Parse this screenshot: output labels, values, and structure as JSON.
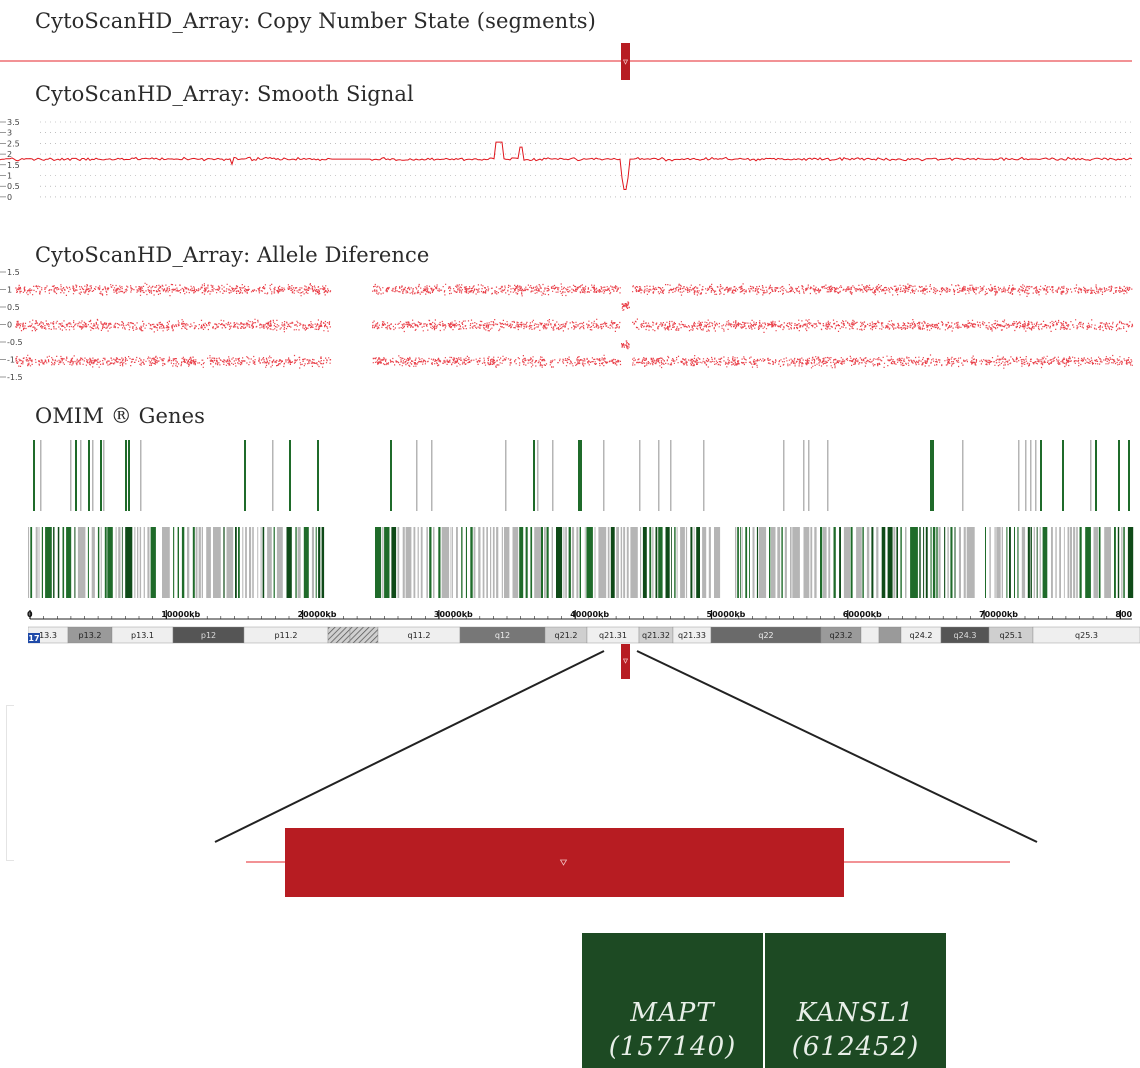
{
  "tracks": {
    "copy_number": {
      "title": "CytoScanHD_Array: Copy Number State (segments)"
    },
    "smooth_signal": {
      "title": "CytoScanHD_Array: Smooth Signal",
      "y_ticks": [
        "3.5",
        "3",
        "2.5",
        "2",
        "1.5",
        "1",
        "0.5",
        "0"
      ]
    },
    "allele_difference": {
      "title": "CytoScanHD_Array: Allele Diference",
      "y_ticks": [
        "1.5",
        "1",
        "0.5",
        "0",
        "-0.5",
        "-1",
        "-1.5"
      ]
    },
    "omim": {
      "title": "OMIM ® Genes"
    }
  },
  "axis": {
    "labels": [
      "0",
      "10000kb",
      "20000kb",
      "30000kb",
      "40000kb",
      "50000kb",
      "60000kb",
      "70000kb",
      "800"
    ]
  },
  "ideogram": {
    "chromosome": "17",
    "bands": [
      "13.3",
      "p13.2",
      "p13.1",
      "p12",
      "p11.2",
      "q11.2",
      "q12",
      "q21.2",
      "q21.31",
      "q21.32",
      "q21.33",
      "q22",
      "q23.2",
      "q24.2",
      "q24.3",
      "q25.1",
      "q25.3"
    ]
  },
  "genes": [
    {
      "symbol": "MAPT",
      "omim": "(157140)"
    },
    {
      "symbol": "KANSL1",
      "omim": "(612452)"
    }
  ],
  "colors": {
    "segment_red": "#b71c22",
    "signal_red": "#e0151c",
    "gene_green": "#1f6b2a",
    "gene_gray": "#b5b5b5",
    "gene_box": "#1d4a23"
  }
}
